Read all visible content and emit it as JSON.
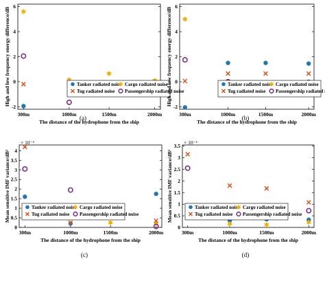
{
  "figure": {
    "legend_labels": [
      "Tanker radiated noise",
      "Cargo radiated noise",
      "Tug radiated noise",
      "Passengership radiated noise"
    ],
    "series_styles": {
      "Tanker radiated noise": {
        "marker": "filled-circle",
        "color": "#1f77b4"
      },
      "Cargo radiated noise": {
        "marker": "hexagram",
        "color": "#f5b000"
      },
      "Tug radiated noise": {
        "marker": "cross",
        "color": "#d95319"
      },
      "Passengership radiated noise": {
        "marker": "open-circle",
        "color": "#7e2f8e"
      }
    }
  },
  "chart_data": [
    {
      "type": "scatter",
      "panel_label": "(a)",
      "xlabel": "The distance of the hydrophone from the ship",
      "ylabel": "High and low frequency energy difference/dB",
      "categories": [
        "300m",
        "1000m",
        "1500m",
        "2000m"
      ],
      "y_ticks": [
        "-2",
        "0",
        "2",
        "4",
        "6"
      ],
      "ylim": [
        -2.2,
        6.2
      ],
      "exponent_label": "",
      "legend_position": "bottom-right",
      "series": [
        {
          "name": "Tanker radiated noise",
          "values": [
            -1.95,
            -0.95,
            -0.8,
            -0.65
          ]
        },
        {
          "name": "Cargo radiated noise",
          "values": [
            5.6,
            0.15,
            0.65,
            0.1
          ]
        },
        {
          "name": "Tug radiated noise",
          "values": [
            -0.2,
            -0.25,
            -0.1,
            -0.05
          ]
        },
        {
          "name": "Passengership radiated noise",
          "values": [
            2.05,
            -1.65,
            -0.75,
            -0.6
          ]
        }
      ]
    },
    {
      "type": "scatter",
      "panel_label": "(b)",
      "xlabel": "The distance of the hydrophone from the ship",
      "ylabel": "High and low frequency energy difference/dB",
      "categories": [
        "300m",
        "1000m",
        "1500m",
        "2000m"
      ],
      "y_ticks": [
        "-2",
        "0",
        "2",
        "4",
        "6"
      ],
      "ylim": [
        -2.2,
        6.2
      ],
      "exponent_label": "",
      "legend_position": "bottom-right",
      "series": [
        {
          "name": "Tanker radiated noise",
          "values": [
            -2.05,
            1.5,
            1.5,
            1.45
          ]
        },
        {
          "name": "Cargo radiated noise",
          "values": [
            5.0,
            -0.75,
            -0.65,
            -0.75
          ]
        },
        {
          "name": "Tug radiated noise",
          "values": [
            0.05,
            0.65,
            0.65,
            0.65
          ]
        },
        {
          "name": "Passengership radiated noise",
          "values": [
            1.75,
            0.0,
            -0.1,
            -0.05
          ]
        }
      ]
    },
    {
      "type": "scatter",
      "panel_label": "(c)",
      "xlabel": "The distance of the hydrophone from the ship",
      "ylabel": "Mean sensitive IMF variance/dB²",
      "categories": [
        "300m",
        "1000m",
        "1500m",
        "2000m"
      ],
      "y_ticks": [
        "0",
        "0.5",
        "1",
        "1.5",
        "2",
        "2.5",
        "3",
        "3.5",
        "4"
      ],
      "ylim": [
        0,
        4.3
      ],
      "exponent_label": "× 10⁻⁶",
      "legend_position": "bottom-center",
      "series": [
        {
          "name": "Tanker radiated noise",
          "values": [
            1.6,
            0.2,
            1.05,
            1.75
          ]
        },
        {
          "name": "Cargo radiated noise",
          "values": [
            0.85,
            0.5,
            0.25,
            0.2
          ]
        },
        {
          "name": "Tug radiated noise",
          "values": [
            4.2,
            0.25,
            1.15,
            0.35
          ]
        },
        {
          "name": "Passengership radiated noise",
          "values": [
            3.05,
            1.95,
            0.85,
            0.05
          ]
        }
      ]
    },
    {
      "type": "scatter",
      "panel_label": "(d)",
      "xlabel": "The distance of the hydrophone from the ship",
      "ylabel": "Mean sensitive IMF variance/dB²",
      "categories": [
        "300m",
        "1000m",
        "1500m",
        "2000m"
      ],
      "y_ticks": [
        "0",
        "0.5",
        "1",
        "1.5",
        "2",
        "2.5",
        "3",
        "3.5"
      ],
      "ylim": [
        0,
        3.55
      ],
      "exponent_label": "× 10⁻⁶",
      "legend_position": "bottom-center",
      "series": [
        {
          "name": "Tanker radiated noise",
          "values": [
            0.62,
            0.3,
            0.35,
            0.33
          ]
        },
        {
          "name": "Cargo radiated noise",
          "values": [
            0.5,
            0.15,
            0.12,
            0.22
          ]
        },
        {
          "name": "Tug radiated noise",
          "values": [
            3.15,
            1.8,
            1.68,
            1.08
          ]
        },
        {
          "name": "Passengership radiated noise",
          "values": [
            2.55,
            0.8,
            0.75,
            0.72
          ]
        }
      ]
    }
  ]
}
